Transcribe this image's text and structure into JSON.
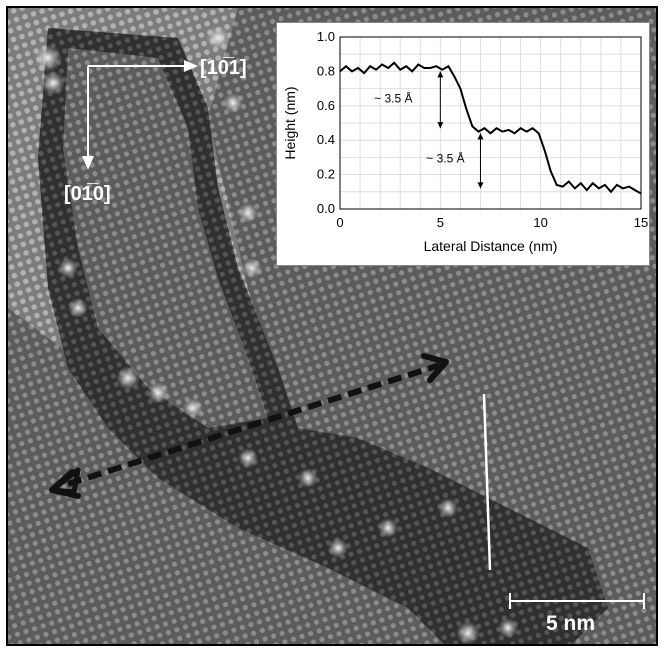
{
  "directions": {
    "horizontal": "[10̅1]",
    "vertical": "[01̅0]"
  },
  "scalebar": {
    "label": "5 nm"
  },
  "chart_data": {
    "type": "line",
    "xlabel": "Lateral Distance (nm)",
    "ylabel": "Height (nm)",
    "xlim": [
      0,
      15
    ],
    "ylim": [
      0.0,
      1.0
    ],
    "xticks": [
      "0",
      "5",
      "10",
      "15"
    ],
    "yticks": [
      "0.0",
      "0.2",
      "0.4",
      "0.6",
      "0.8",
      "1.0"
    ],
    "grid": true,
    "x": [
      0,
      0.3,
      0.6,
      0.9,
      1.2,
      1.5,
      1.8,
      2.1,
      2.4,
      2.7,
      3.0,
      3.3,
      3.6,
      3.9,
      4.2,
      4.5,
      4.8,
      5.1,
      5.4,
      5.7,
      6.0,
      6.3,
      6.6,
      6.9,
      7.2,
      7.5,
      7.8,
      8.1,
      8.4,
      8.7,
      9.0,
      9.3,
      9.6,
      9.9,
      10.2,
      10.5,
      10.8,
      11.1,
      11.4,
      11.7,
      12.0,
      12.3,
      12.6,
      12.9,
      13.2,
      13.5,
      13.8,
      14.1,
      14.4,
      14.7,
      15.0
    ],
    "y": [
      0.8,
      0.83,
      0.8,
      0.82,
      0.79,
      0.83,
      0.81,
      0.84,
      0.82,
      0.85,
      0.81,
      0.83,
      0.8,
      0.84,
      0.82,
      0.82,
      0.83,
      0.81,
      0.83,
      0.77,
      0.7,
      0.58,
      0.48,
      0.45,
      0.47,
      0.44,
      0.47,
      0.45,
      0.46,
      0.44,
      0.47,
      0.45,
      0.47,
      0.44,
      0.34,
      0.22,
      0.14,
      0.13,
      0.16,
      0.12,
      0.15,
      0.11,
      0.15,
      0.12,
      0.14,
      0.1,
      0.14,
      0.12,
      0.13,
      0.11,
      0.09
    ],
    "annotations": [
      {
        "text": "~ 3.5 Å"
      },
      {
        "text": "~ 3.5 Å"
      }
    ]
  }
}
